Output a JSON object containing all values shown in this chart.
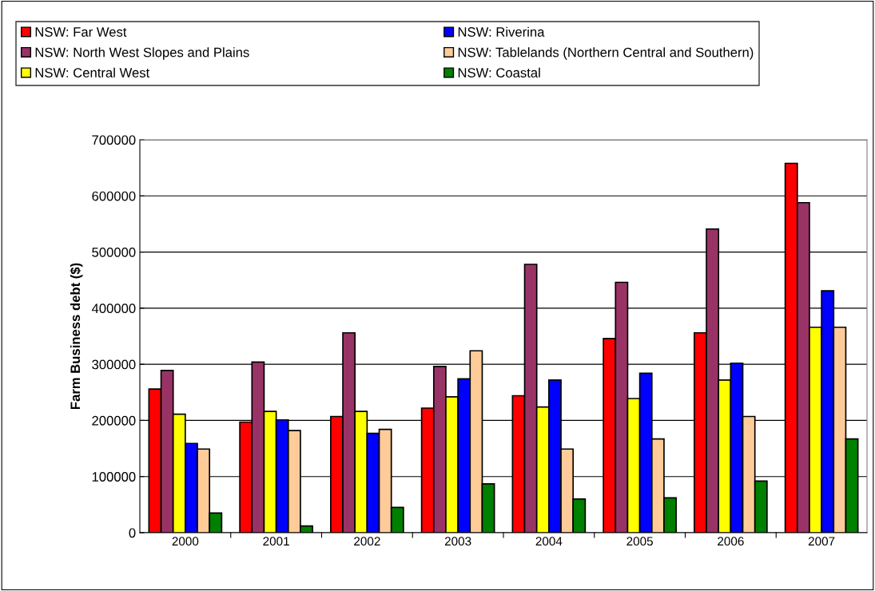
{
  "chart_data": {
    "type": "bar",
    "ylabel": "Farm Business debt ($)",
    "categories": [
      "2000",
      "2001",
      "2002",
      "2003",
      "2004",
      "2005",
      "2006",
      "2007"
    ],
    "series": [
      {
        "name": "NSW: Far West",
        "color": "#ff0000",
        "values": [
          256000,
          197000,
          207000,
          222000,
          244000,
          346000,
          356000,
          658000
        ]
      },
      {
        "name": "NSW: North West Slopes and Plains",
        "color": "#993366",
        "values": [
          289000,
          304000,
          356000,
          296000,
          478000,
          446000,
          541000,
          588000
        ]
      },
      {
        "name": "NSW: Central West",
        "color": "#ffff00",
        "values": [
          211000,
          216000,
          216000,
          242000,
          224000,
          239000,
          272000,
          366000
        ]
      },
      {
        "name": "NSW: Riverina",
        "color": "#0000ff",
        "values": [
          159000,
          201000,
          177000,
          274000,
          272000,
          284000,
          302000,
          431000
        ]
      },
      {
        "name": "NSW: Tablelands (Northern Central and Southern)",
        "color": "#ffcc99",
        "values": [
          149000,
          182000,
          184000,
          324000,
          149000,
          167000,
          207000,
          366000
        ]
      },
      {
        "name": "NSW: Coastal",
        "color": "#008000",
        "values": [
          35000,
          12000,
          45000,
          87000,
          60000,
          62000,
          92000,
          167000
        ]
      }
    ],
    "ylim": [
      0,
      700000
    ],
    "yticks": [
      0,
      100000,
      200000,
      300000,
      400000,
      500000,
      600000,
      700000
    ],
    "grid": "y",
    "legend": "top"
  }
}
